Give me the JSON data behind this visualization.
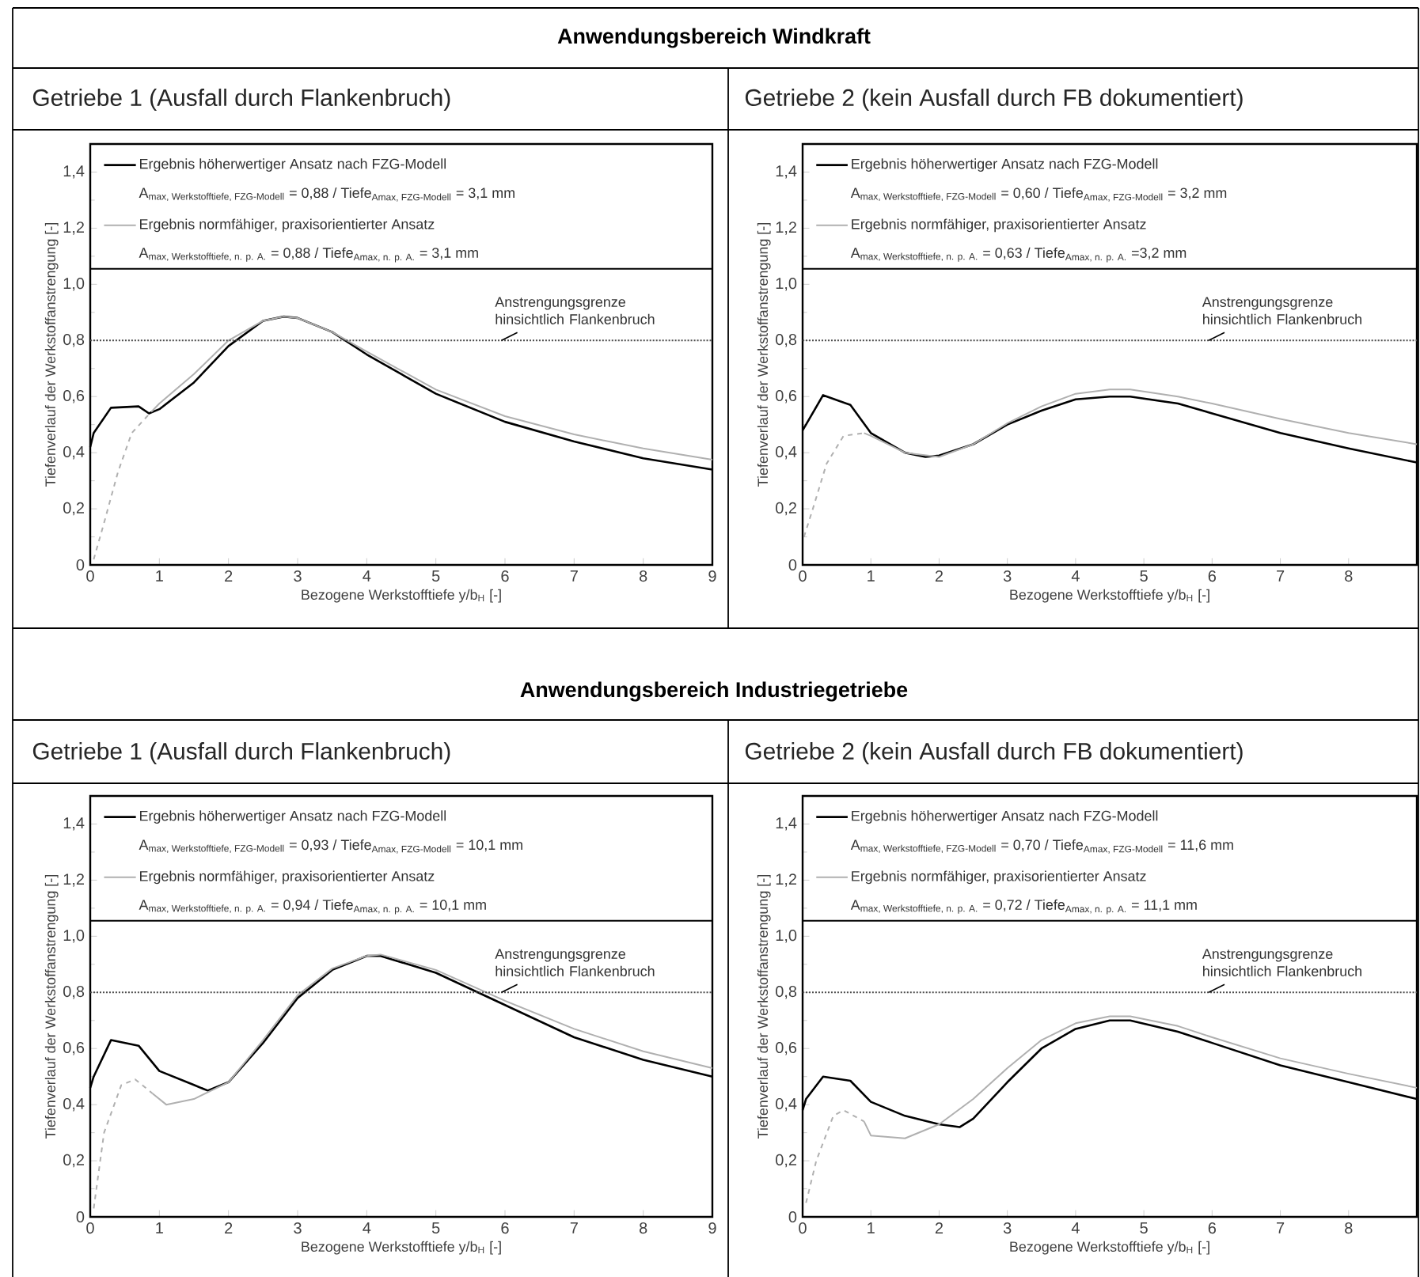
{
  "chart_data": [
    {
      "type": "line",
      "title": "Anwendungsbereich Windkraft",
      "subtitle": "Getriebe 1 (Ausfall durch Flankenbruch)",
      "xlabel": "Bezogene Werkstofftiefe y/b$_{H}$ [-]",
      "ylabel": "Tiefenverlauf der Werkstoffanstrengung [-]",
      "xlim": [
        0,
        9
      ],
      "ylim": [
        0,
        1.5
      ],
      "xticks": [
        0,
        1,
        2,
        3,
        4,
        5,
        6,
        7,
        8,
        9
      ],
      "yticks": [
        0,
        {
          "value": 0.2,
          "label": "0,2"
        },
        {
          "value": 0.4,
          "label": "0,4"
        },
        {
          "value": 0.6,
          "label": "0,6"
        },
        {
          "value": 0.8,
          "label": "0,8"
        },
        {
          "value": 1.0,
          "label": "1,0"
        },
        {
          "value": 1.2,
          "label": "1,2"
        },
        {
          "value": 1.4,
          "label": "1,4"
        }
      ],
      "legend": "top",
      "annotations": [
        "\\text{A}_{\\text{max, Werkstofftiefe, FZG-Modell}}\\text{ = 0,88 / Tiefe}_{\\text{Amax, FZG-Modell}}\\text{ = 3,1 mm}",
        "\\text{A}_{\\text{max, Werkstofftiefe, n. p. A.}}\\text{ = 0,88 / Tiefe}_{\\text{Amax, n. p. A.}}\\text{ = 3,1 mm}"
      ],
      "ref_lines": [
        {
          "axis": "y",
          "value": 0.8,
          "label": "Anstrengungsgrenze hinsichtlich Flankenbruch",
          "line_style": "dotted"
        }
      ],
      "series": [
        {
          "name": "Ergebnis höherwertiger Ansatz nach FZG-Modell",
          "color": "#000000",
          "x": [
            0,
            0.05,
            0.3,
            0.7,
            0.85,
            1.0,
            1.5,
            2.0,
            2.5,
            2.8,
            3.0,
            3.5,
            4,
            5,
            6,
            7,
            8,
            9
          ],
          "values": [
            0.42,
            0.47,
            0.56,
            0.565,
            0.54,
            0.555,
            0.65,
            0.78,
            0.87,
            0.885,
            0.88,
            0.83,
            0.75,
            0.61,
            0.51,
            0.44,
            0.38,
            0.34
          ]
        },
        {
          "name": "Ergebnis normfähiger, praxisorientierter Ansatz",
          "color": "#b0b0b0",
          "x": [
            0.9,
            1.0,
            1.5,
            2.0,
            2.5,
            2.8,
            3.0,
            3.5,
            4,
            5,
            6,
            7,
            8,
            9
          ],
          "values": [
            0.55,
            0.575,
            0.68,
            0.8,
            0.87,
            0.885,
            0.88,
            0.83,
            0.76,
            0.625,
            0.53,
            0.465,
            0.415,
            0.375
          ]
        },
        {
          "color": "#b0b0b0",
          "line_style": "dashed",
          "x": [
            0.05,
            0.2,
            0.4,
            0.6,
            0.9
          ],
          "values": [
            0.02,
            0.15,
            0.33,
            0.47,
            0.55
          ]
        }
      ]
    },
    {
      "type": "line",
      "subtitle": "Getriebe 2 (kein Ausfall durch FB dokumentiert)",
      "xlabel": "Bezogene Werkstofftiefe y/b$_{H}$ [-]",
      "ylabel": "Tiefenverlauf der Werkstoffanstrengung [-]",
      "xlim": [
        0,
        9
      ],
      "ylim": [
        0,
        1.5
      ],
      "xticks": [
        0,
        1,
        2,
        3,
        4,
        5,
        6,
        7,
        8
      ],
      "yticks": [
        0,
        {
          "value": 0.2,
          "label": "0,2"
        },
        {
          "value": 0.4,
          "label": "0,4"
        },
        {
          "value": 0.6,
          "label": "0,6"
        },
        {
          "value": 0.8,
          "label": "0,8"
        },
        {
          "value": 1.0,
          "label": "1,0"
        },
        {
          "value": 1.2,
          "label": "1,2"
        },
        {
          "value": 1.4,
          "label": "1,4"
        }
      ],
      "legend": "top",
      "annotations": [
        "\\text{A}_{\\text{max, Werkstofftiefe, FZG-Modell}}\\text{ = 0,60 / Tiefe}_{\\text{Amax, FZG-Modell}}\\text{ = 3,2 mm}",
        "\\text{A}_{\\text{max, Werkstofftiefe, n. p. A.}}\\text{ = 0,63 / Tiefe}_{\\text{Amax, n. p. A.}}\\text{ =3,2 mm}"
      ],
      "ref_lines": [
        {
          "axis": "y",
          "value": 0.8,
          "label": "Anstrengungsgrenze hinsichtlich Flankenbruch",
          "line_style": "dotted"
        }
      ],
      "series": [
        {
          "name": "Ergebnis höherwertiger Ansatz nach FZG-Modell",
          "color": "#000000",
          "x": [
            0,
            0.05,
            0.3,
            0.7,
            1.0,
            1.5,
            1.8,
            2.0,
            2.5,
            3,
            3.5,
            4,
            4.5,
            4.8,
            5.5,
            6,
            7,
            8,
            9
          ],
          "values": [
            0.48,
            0.5,
            0.605,
            0.57,
            0.47,
            0.4,
            0.385,
            0.39,
            0.43,
            0.5,
            0.55,
            0.59,
            0.6,
            0.6,
            0.575,
            0.54,
            0.47,
            0.415,
            0.365
          ]
        },
        {
          "name": "Ergebnis normfähiger, praxisorientierter Ansatz",
          "color": "#b0b0b0",
          "x": [
            0.9,
            1.0,
            1.5,
            2,
            2.5,
            3,
            3.5,
            4,
            4.5,
            4.8,
            5.5,
            6,
            7,
            8,
            9
          ],
          "values": [
            0.47,
            0.46,
            0.4,
            0.385,
            0.43,
            0.505,
            0.565,
            0.61,
            0.625,
            0.625,
            0.6,
            0.575,
            0.52,
            0.47,
            0.43
          ]
        },
        {
          "color": "#b0b0b0",
          "line_style": "dashed",
          "x": [
            0.02,
            0.15,
            0.35,
            0.6,
            0.9
          ],
          "values": [
            0.1,
            0.2,
            0.36,
            0.46,
            0.47
          ]
        }
      ]
    },
    {
      "type": "line",
      "title": "Anwendungsbereich Industriegetriebe",
      "subtitle": "Getriebe 1 (Ausfall durch Flankenbruch)",
      "xlabel": "Bezogene Werkstofftiefe y/b$_{H}$ [-]",
      "ylabel": "Tiefenverlauf der Werkstoffanstrengung [-]",
      "xlim": [
        0,
        9
      ],
      "ylim": [
        0,
        1.5
      ],
      "xticks": [
        0,
        1,
        2,
        3,
        4,
        5,
        6,
        7,
        8,
        9
      ],
      "yticks": [
        0,
        {
          "value": 0.2,
          "label": "0,2"
        },
        {
          "value": 0.4,
          "label": "0,4"
        },
        {
          "value": 0.6,
          "label": "0,6"
        },
        {
          "value": 0.8,
          "label": "0,8"
        },
        {
          "value": 1.0,
          "label": "1,0"
        },
        {
          "value": 1.2,
          "label": "1,2"
        },
        {
          "value": 1.4,
          "label": "1,4"
        }
      ],
      "legend": "top",
      "annotations": [
        "\\text{A}_{\\text{max, Werkstofftiefe, FZG-Modell}}\\text{ = 0,93 / Tiefe}_{\\text{Amax, FZG-Modell}}\\text{ = 10,1 mm}",
        "\\text{A}_{\\text{max, Werkstofftiefe, n. p. A.}}\\text{ = 0,94 / Tiefe}_{\\text{Amax, n. p. A.}}\\text{ = 10,1 mm}"
      ],
      "ref_lines": [
        {
          "axis": "y",
          "value": 0.8,
          "label": "Anstrengungsgrenze hinsichtlich Flankenbruch",
          "line_style": "dotted"
        }
      ],
      "series": [
        {
          "name": "Ergebnis höherwertiger Ansatz nach FZG-Modell",
          "color": "#000000",
          "x": [
            0,
            0.05,
            0.3,
            0.7,
            1.0,
            1.5,
            1.7,
            2,
            2.5,
            3,
            3.5,
            4,
            4.2,
            5,
            6,
            7,
            8,
            9
          ],
          "values": [
            0.46,
            0.5,
            0.63,
            0.61,
            0.52,
            0.47,
            0.45,
            0.48,
            0.62,
            0.78,
            0.88,
            0.93,
            0.93,
            0.87,
            0.755,
            0.64,
            0.56,
            0.5
          ]
        },
        {
          "name": "Ergebnis normfähiger, praxisorientierter Ansatz",
          "color": "#b0b0b0",
          "x": [
            0.9,
            1.1,
            1.5,
            2,
            2.5,
            3,
            3.5,
            4,
            4.2,
            5,
            6,
            7,
            8,
            9
          ],
          "values": [
            0.44,
            0.4,
            0.42,
            0.48,
            0.63,
            0.79,
            0.885,
            0.93,
            0.935,
            0.88,
            0.77,
            0.67,
            0.59,
            0.53
          ]
        },
        {
          "color": "#b0b0b0",
          "line_style": "dashed",
          "x": [
            0.05,
            0.2,
            0.45,
            0.65,
            0.9
          ],
          "values": [
            0.03,
            0.3,
            0.47,
            0.49,
            0.44
          ]
        }
      ]
    },
    {
      "type": "line",
      "subtitle": "Getriebe 2 (kein Ausfall durch FB dokumentiert)",
      "xlabel": "Bezogene Werkstofftiefe y/b$_{H}$ [-]",
      "ylabel": "Tiefenverlauf der Werkstoffanstrengung [-]",
      "xlim": [
        0,
        9
      ],
      "ylim": [
        0,
        1.5
      ],
      "xticks": [
        0,
        1,
        2,
        3,
        4,
        5,
        6,
        7,
        8
      ],
      "yticks": [
        0,
        {
          "value": 0.2,
          "label": "0,2"
        },
        {
          "value": 0.4,
          "label": "0,4"
        },
        {
          "value": 0.6,
          "label": "0,6"
        },
        {
          "value": 0.8,
          "label": "0,8"
        },
        {
          "value": 1.0,
          "label": "1,0"
        },
        {
          "value": 1.2,
          "label": "1,2"
        },
        {
          "value": 1.4,
          "label": "1,4"
        }
      ],
      "legend": "top",
      "annotations": [
        "\\text{A}_{\\text{max, Werkstofftiefe, FZG-Modell}}\\text{ = 0,70 / Tiefe}_{\\text{Amax, FZG-Modell}}\\text{ = 11,6 mm}",
        "\\text{A}_{\\text{max, Werkstofftiefe, n. p. A.}}\\text{ = 0,72 / Tiefe}_{\\text{Amax, n. p. A.}}\\text{ = 11,1 mm}"
      ],
      "ref_lines": [
        {
          "axis": "y",
          "value": 0.8,
          "label": "Anstrengungsgrenze hinsichtlich Flankenbruch",
          "line_style": "dotted"
        }
      ],
      "series": [
        {
          "name": "Ergebnis höherwertiger Ansatz nach FZG-Modell",
          "color": "#000000",
          "x": [
            0,
            0.05,
            0.3,
            0.7,
            1.0,
            1.5,
            2,
            2.3,
            2.5,
            3,
            3.5,
            4,
            4.5,
            4.8,
            5.5,
            6,
            7,
            8,
            9
          ],
          "values": [
            0.38,
            0.42,
            0.5,
            0.485,
            0.41,
            0.36,
            0.33,
            0.32,
            0.35,
            0.48,
            0.6,
            0.67,
            0.7,
            0.7,
            0.66,
            0.62,
            0.54,
            0.48,
            0.42
          ]
        },
        {
          "name": "Ergebnis normfähiger, praxisorientierter Ansatz",
          "color": "#b0b0b0",
          "x": [
            0.9,
            1.0,
            1.5,
            2,
            2.5,
            3,
            3.5,
            4,
            4.5,
            4.8,
            5.5,
            6,
            7,
            8,
            9
          ],
          "values": [
            0.34,
            0.29,
            0.28,
            0.33,
            0.42,
            0.53,
            0.63,
            0.69,
            0.715,
            0.715,
            0.68,
            0.64,
            0.565,
            0.51,
            0.46
          ]
        },
        {
          "color": "#b0b0b0",
          "line_style": "dashed",
          "x": [
            0.05,
            0.2,
            0.45,
            0.6,
            0.9
          ],
          "values": [
            0.05,
            0.2,
            0.36,
            0.38,
            0.34
          ]
        }
      ]
    }
  ]
}
